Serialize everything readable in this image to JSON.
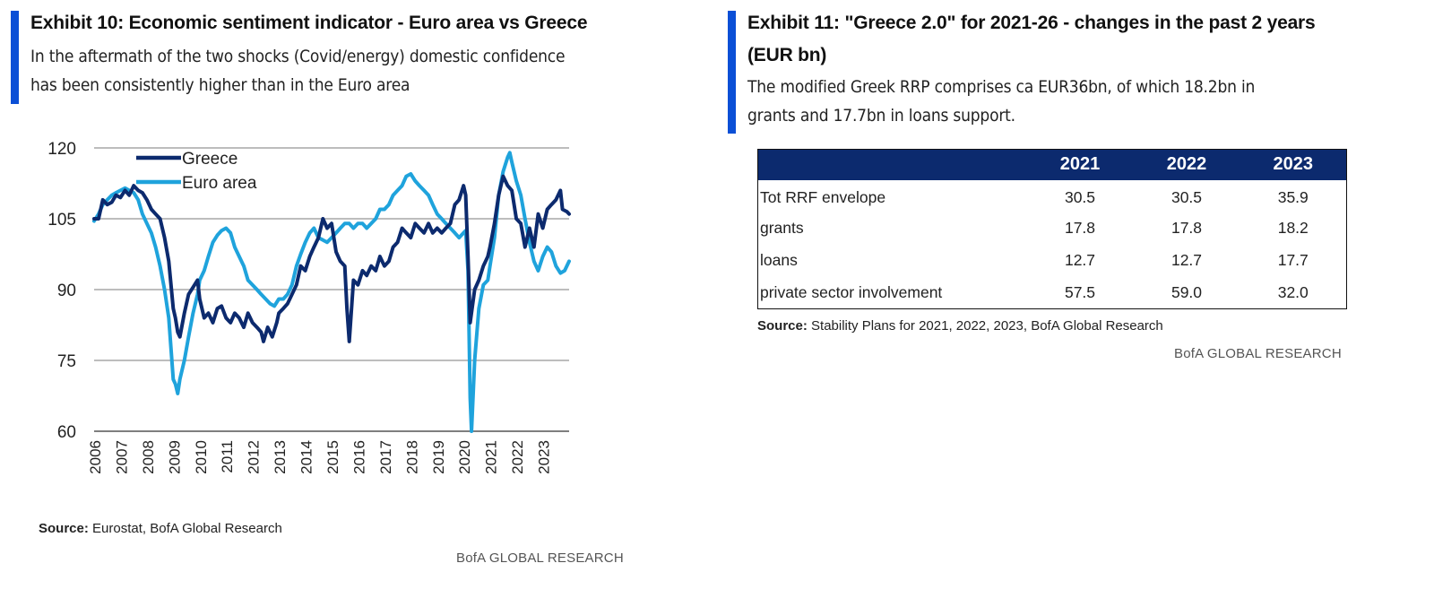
{
  "exhibit10": {
    "title": "Exhibit 10: Economic sentiment indicator - Euro area vs Greece",
    "subtitle_line1": "In the aftermath of the two shocks (Covid/energy) domestic confidence",
    "subtitle_line2": "has been consistently higher than in the Euro area",
    "source_label": "Source:",
    "source_text": " Eurostat, BofA Global Research",
    "brand": "BofA GLOBAL RESEARCH"
  },
  "exhibit11": {
    "title_line1": "Exhibit 11: \"Greece 2.0\" for 2021-26 - changes in the past 2 years",
    "title_line2": "(EUR bn)",
    "subtitle_line1": "The modified Greek RRP comprises ca EUR36bn, of which 18.2bn in",
    "subtitle_line2": "grants and 17.7bn in loans support.",
    "source_label": "Source:",
    "source_text": " Stability Plans for 2021, 2022, 2023, BofA Global Research",
    "brand": "BofA GLOBAL RESEARCH"
  },
  "colors": {
    "accent_bar": "#0b4fd6",
    "greece": "#0c2a6e",
    "euro_area": "#1fa3dc",
    "table_header": "#0c2a6e",
    "grid": "#bdbdbd"
  },
  "chart_data": {
    "type": "line",
    "title": "Economic sentiment indicator - Euro area vs Greece",
    "xlabel": "",
    "ylabel": "",
    "ylim": [
      60,
      120
    ],
    "yticks": [
      60,
      75,
      90,
      105,
      120
    ],
    "grid": true,
    "legend_position": "top-left",
    "x_tick_labels": [
      "2006",
      "2007",
      "2008",
      "2009",
      "2010",
      "2011",
      "2012",
      "2013",
      "2014",
      "2015",
      "2016",
      "2017",
      "2018",
      "2019",
      "2020",
      "2021",
      "2022",
      "2023"
    ],
    "x_start": 2006.0,
    "x_end": 2024.0,
    "series": [
      {
        "name": "Greece",
        "color": "#0c2a6e",
        "points": [
          [
            2006.0,
            105
          ],
          [
            2006.17,
            105
          ],
          [
            2006.33,
            109
          ],
          [
            2006.5,
            108
          ],
          [
            2006.67,
            108.5
          ],
          [
            2006.83,
            110
          ],
          [
            2007.0,
            109.5
          ],
          [
            2007.17,
            111
          ],
          [
            2007.33,
            110
          ],
          [
            2007.5,
            112
          ],
          [
            2007.67,
            111
          ],
          [
            2007.83,
            110.5
          ],
          [
            2008.0,
            109
          ],
          [
            2008.17,
            107
          ],
          [
            2008.33,
            106
          ],
          [
            2008.5,
            105
          ],
          [
            2008.67,
            101
          ],
          [
            2008.83,
            96
          ],
          [
            2009.0,
            86
          ],
          [
            2009.08,
            84
          ],
          [
            2009.17,
            81
          ],
          [
            2009.25,
            80
          ],
          [
            2009.42,
            85
          ],
          [
            2009.58,
            89
          ],
          [
            2009.75,
            90.5
          ],
          [
            2009.92,
            92
          ],
          [
            2010.0,
            88
          ],
          [
            2010.17,
            84
          ],
          [
            2010.33,
            85
          ],
          [
            2010.5,
            83
          ],
          [
            2010.67,
            86
          ],
          [
            2010.83,
            86.5
          ],
          [
            2011.0,
            84
          ],
          [
            2011.17,
            83
          ],
          [
            2011.33,
            85
          ],
          [
            2011.5,
            84
          ],
          [
            2011.67,
            82
          ],
          [
            2011.83,
            85
          ],
          [
            2012.0,
            83
          ],
          [
            2012.17,
            82
          ],
          [
            2012.33,
            81
          ],
          [
            2012.42,
            79
          ],
          [
            2012.58,
            82
          ],
          [
            2012.75,
            80
          ],
          [
            2012.92,
            83
          ],
          [
            2013.0,
            85
          ],
          [
            2013.17,
            86
          ],
          [
            2013.33,
            87
          ],
          [
            2013.5,
            89
          ],
          [
            2013.67,
            91
          ],
          [
            2013.83,
            95
          ],
          [
            2014.0,
            94
          ],
          [
            2014.17,
            97
          ],
          [
            2014.33,
            99
          ],
          [
            2014.5,
            101
          ],
          [
            2014.67,
            105
          ],
          [
            2014.83,
            103
          ],
          [
            2015.0,
            104
          ],
          [
            2015.17,
            98
          ],
          [
            2015.33,
            96
          ],
          [
            2015.5,
            95
          ],
          [
            2015.58,
            86
          ],
          [
            2015.67,
            79
          ],
          [
            2015.83,
            92
          ],
          [
            2016.0,
            91
          ],
          [
            2016.17,
            94
          ],
          [
            2016.33,
            93
          ],
          [
            2016.5,
            95
          ],
          [
            2016.67,
            94
          ],
          [
            2016.83,
            97
          ],
          [
            2017.0,
            95
          ],
          [
            2017.17,
            96
          ],
          [
            2017.33,
            99
          ],
          [
            2017.5,
            100
          ],
          [
            2017.67,
            103
          ],
          [
            2017.83,
            102
          ],
          [
            2018.0,
            101
          ],
          [
            2018.17,
            104
          ],
          [
            2018.33,
            103
          ],
          [
            2018.5,
            102
          ],
          [
            2018.67,
            104
          ],
          [
            2018.83,
            102
          ],
          [
            2019.0,
            103
          ],
          [
            2019.17,
            102
          ],
          [
            2019.33,
            103
          ],
          [
            2019.5,
            104
          ],
          [
            2019.67,
            108
          ],
          [
            2019.83,
            109
          ],
          [
            2020.0,
            112
          ],
          [
            2020.08,
            110
          ],
          [
            2020.17,
            97
          ],
          [
            2020.25,
            83
          ],
          [
            2020.42,
            90
          ],
          [
            2020.58,
            92
          ],
          [
            2020.75,
            95
          ],
          [
            2020.92,
            97
          ],
          [
            2021.0,
            99
          ],
          [
            2021.17,
            104
          ],
          [
            2021.33,
            110
          ],
          [
            2021.5,
            114
          ],
          [
            2021.67,
            112
          ],
          [
            2021.83,
            111
          ],
          [
            2022.0,
            105
          ],
          [
            2022.17,
            104
          ],
          [
            2022.33,
            99
          ],
          [
            2022.5,
            103
          ],
          [
            2022.67,
            99
          ],
          [
            2022.83,
            106
          ],
          [
            2023.0,
            103
          ],
          [
            2023.17,
            107
          ],
          [
            2023.33,
            108
          ],
          [
            2023.5,
            109
          ],
          [
            2023.67,
            111
          ],
          [
            2023.75,
            107
          ],
          [
            2023.92,
            106.5
          ],
          [
            2024.0,
            106
          ]
        ]
      },
      {
        "name": "Euro area",
        "color": "#1fa3dc",
        "points": [
          [
            2006.0,
            104.5
          ],
          [
            2006.17,
            106
          ],
          [
            2006.33,
            108
          ],
          [
            2006.5,
            109
          ],
          [
            2006.67,
            110
          ],
          [
            2006.83,
            110.5
          ],
          [
            2007.0,
            111
          ],
          [
            2007.17,
            111.5
          ],
          [
            2007.33,
            111
          ],
          [
            2007.5,
            110.5
          ],
          [
            2007.67,
            109
          ],
          [
            2007.83,
            106
          ],
          [
            2008.0,
            104
          ],
          [
            2008.17,
            102
          ],
          [
            2008.33,
            99
          ],
          [
            2008.5,
            95
          ],
          [
            2008.67,
            90
          ],
          [
            2008.83,
            84
          ],
          [
            2009.0,
            71
          ],
          [
            2009.08,
            70
          ],
          [
            2009.17,
            68
          ],
          [
            2009.25,
            71
          ],
          [
            2009.42,
            75
          ],
          [
            2009.58,
            80
          ],
          [
            2009.75,
            85
          ],
          [
            2009.92,
            89
          ],
          [
            2010.0,
            92
          ],
          [
            2010.17,
            94
          ],
          [
            2010.33,
            97
          ],
          [
            2010.5,
            100
          ],
          [
            2010.67,
            101.5
          ],
          [
            2010.83,
            102.5
          ],
          [
            2011.0,
            103
          ],
          [
            2011.17,
            102
          ],
          [
            2011.33,
            99
          ],
          [
            2011.5,
            97
          ],
          [
            2011.67,
            95
          ],
          [
            2011.83,
            92
          ],
          [
            2012.0,
            91
          ],
          [
            2012.17,
            90
          ],
          [
            2012.33,
            89
          ],
          [
            2012.5,
            88
          ],
          [
            2012.67,
            87
          ],
          [
            2012.83,
            86.5
          ],
          [
            2013.0,
            88
          ],
          [
            2013.17,
            88
          ],
          [
            2013.33,
            89
          ],
          [
            2013.5,
            91
          ],
          [
            2013.67,
            95
          ],
          [
            2013.83,
            97.5
          ],
          [
            2014.0,
            100
          ],
          [
            2014.17,
            102
          ],
          [
            2014.33,
            103
          ],
          [
            2014.5,
            101
          ],
          [
            2014.67,
            100.5
          ],
          [
            2014.83,
            100
          ],
          [
            2015.0,
            101
          ],
          [
            2015.17,
            102
          ],
          [
            2015.33,
            103
          ],
          [
            2015.5,
            104
          ],
          [
            2015.67,
            104
          ],
          [
            2015.83,
            103
          ],
          [
            2016.0,
            104
          ],
          [
            2016.17,
            104
          ],
          [
            2016.33,
            103
          ],
          [
            2016.5,
            104
          ],
          [
            2016.67,
            105
          ],
          [
            2016.83,
            107
          ],
          [
            2017.0,
            107
          ],
          [
            2017.17,
            108
          ],
          [
            2017.33,
            110
          ],
          [
            2017.5,
            111
          ],
          [
            2017.67,
            112
          ],
          [
            2017.83,
            114
          ],
          [
            2018.0,
            114.5
          ],
          [
            2018.17,
            113
          ],
          [
            2018.33,
            112
          ],
          [
            2018.5,
            111
          ],
          [
            2018.67,
            110
          ],
          [
            2018.83,
            108
          ],
          [
            2019.0,
            106
          ],
          [
            2019.17,
            105
          ],
          [
            2019.33,
            104
          ],
          [
            2019.5,
            103
          ],
          [
            2019.67,
            102
          ],
          [
            2019.83,
            101
          ],
          [
            2020.0,
            102
          ],
          [
            2020.08,
            102.5
          ],
          [
            2020.17,
            94
          ],
          [
            2020.25,
            67
          ],
          [
            2020.3,
            60
          ],
          [
            2020.42,
            75
          ],
          [
            2020.58,
            86
          ],
          [
            2020.75,
            91
          ],
          [
            2020.92,
            92
          ],
          [
            2021.0,
            95
          ],
          [
            2021.17,
            101
          ],
          [
            2021.33,
            110
          ],
          [
            2021.5,
            115
          ],
          [
            2021.67,
            118
          ],
          [
            2021.75,
            119
          ],
          [
            2021.83,
            117
          ],
          [
            2022.0,
            113
          ],
          [
            2022.17,
            110
          ],
          [
            2022.33,
            105
          ],
          [
            2022.5,
            100
          ],
          [
            2022.67,
            96
          ],
          [
            2022.83,
            94
          ],
          [
            2023.0,
            97
          ],
          [
            2023.17,
            99
          ],
          [
            2023.33,
            98
          ],
          [
            2023.5,
            95
          ],
          [
            2023.67,
            93.5
          ],
          [
            2023.83,
            94
          ],
          [
            2024.0,
            96
          ]
        ]
      }
    ]
  },
  "table": {
    "columns": [
      "",
      "2021",
      "2022",
      "2023"
    ],
    "rows": [
      {
        "label": "Tot RRF envelope",
        "values": [
          "30.5",
          "30.5",
          "35.9"
        ]
      },
      {
        "label": "grants",
        "values": [
          "17.8",
          "17.8",
          "18.2"
        ]
      },
      {
        "label": "loans",
        "values": [
          "12.7",
          "12.7",
          "17.7"
        ]
      },
      {
        "label": "private sector involvement",
        "values": [
          "57.5",
          "59.0",
          "32.0"
        ]
      }
    ]
  }
}
